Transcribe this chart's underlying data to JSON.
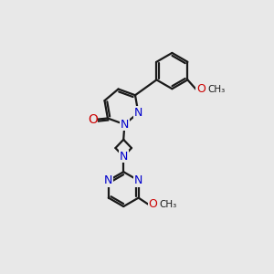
{
  "bg_color": "#e8e8e8",
  "bond_color": "#1a1a1a",
  "nitrogen_color": "#0000cc",
  "oxygen_color": "#cc0000",
  "line_width": 1.6,
  "fig_size": [
    3.0,
    3.0
  ],
  "dpi": 100,
  "xlim": [
    0,
    10
  ],
  "ylim": [
    0,
    10
  ]
}
